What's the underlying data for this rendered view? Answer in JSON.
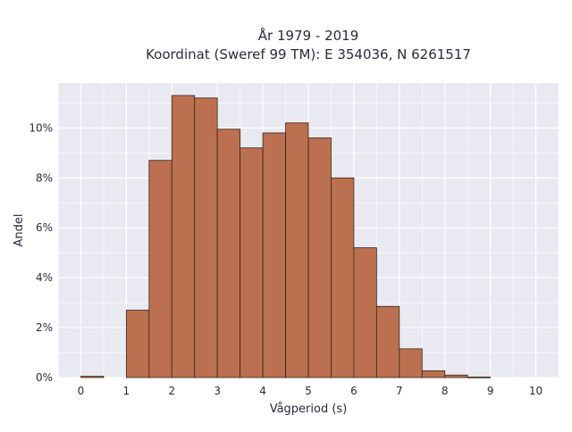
{
  "chart_data": {
    "type": "bar",
    "title_line1": "År 1979 - 2019",
    "title_line2": "Koordinat (Sweref 99 TM): E 354036, N 6261517",
    "xlabel": "Vågperiod (s)",
    "ylabel": "Andel",
    "xlim": [
      -0.5,
      10.5
    ],
    "ylim": [
      0,
      11.8
    ],
    "x_ticks": [
      0,
      1,
      2,
      3,
      4,
      5,
      6,
      7,
      8,
      9,
      10
    ],
    "x_tick_labels": [
      "0",
      "1",
      "2",
      "3",
      "4",
      "5",
      "6",
      "7",
      "8",
      "9",
      "10"
    ],
    "y_ticks": [
      0,
      2,
      4,
      6,
      8,
      10
    ],
    "y_tick_labels": [
      "0%",
      "2%",
      "4%",
      "6%",
      "8%",
      "10%"
    ],
    "bin_width": 0.5,
    "bins": [
      {
        "x0": 0.0,
        "value": 0.05
      },
      {
        "x0": 0.5,
        "value": 0.0
      },
      {
        "x0": 1.0,
        "value": 2.7
      },
      {
        "x0": 1.5,
        "value": 8.7
      },
      {
        "x0": 2.0,
        "value": 11.3
      },
      {
        "x0": 2.5,
        "value": 11.2
      },
      {
        "x0": 3.0,
        "value": 9.95
      },
      {
        "x0": 3.5,
        "value": 9.2
      },
      {
        "x0": 4.0,
        "value": 9.8
      },
      {
        "x0": 4.5,
        "value": 10.2
      },
      {
        "x0": 5.0,
        "value": 9.6
      },
      {
        "x0": 5.5,
        "value": 8.0
      },
      {
        "x0": 6.0,
        "value": 5.2
      },
      {
        "x0": 6.5,
        "value": 2.85
      },
      {
        "x0": 7.0,
        "value": 1.15
      },
      {
        "x0": 7.5,
        "value": 0.27
      },
      {
        "x0": 8.0,
        "value": 0.1
      },
      {
        "x0": 8.5,
        "value": 0.02
      }
    ],
    "grid": true,
    "colors": {
      "bar_fill": "#bb7150",
      "bar_edge": "#3a2418",
      "plot_bg": "#e9e9f1",
      "grid": "#ffffff"
    }
  }
}
